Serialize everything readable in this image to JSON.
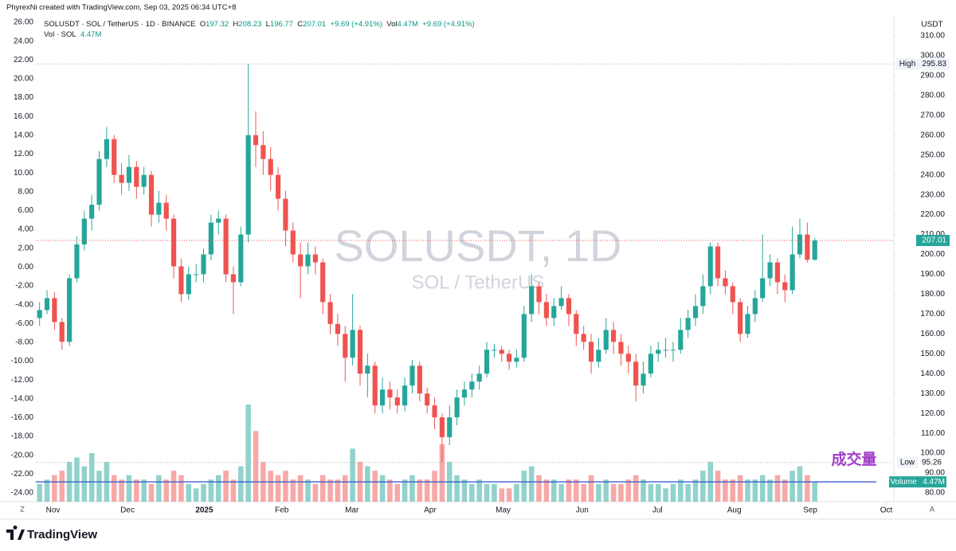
{
  "header": {
    "credit": "PhyrexNi created with TradingView.com, Sep 03, 2025 06:34 UTC+8",
    "symbol": "SOLUSDT · SOL / TetherUS · 1D · BINANCE",
    "ohlc": [
      {
        "label": "O",
        "value": 197.32
      },
      {
        "label": "H",
        "value": 208.23
      },
      {
        "label": "L",
        "value": 196.77
      },
      {
        "label": "C",
        "value": 207.01
      }
    ],
    "change": "+9.69 (+4.91%)",
    "vol_label": "Vol",
    "vol_value": "4.47M",
    "vol_change": "+9.69 (+4.91%)",
    "volume_legend_name": "Vol · SOL",
    "volume_legend_value": "4.47M"
  },
  "footer": {
    "logo": "TradingView",
    "left_button": "Z",
    "right_button": "A"
  },
  "chart_data": {
    "type": "candlestick",
    "currency": "USDT",
    "watermark": "SOLUSDT, 1D",
    "watermark_sub": "SOL / TetherUS",
    "annotation": "成交量",
    "up_color": "#26a69a",
    "down_color": "#ef5350",
    "grid": false,
    "categories": [
      null,
      null,
      null,
      null,
      null,
      null,
      null,
      null,
      null,
      null,
      null,
      null,
      null,
      null,
      null,
      null,
      null,
      null,
      null,
      null,
      null,
      null,
      null,
      null,
      null,
      null,
      null,
      null,
      null,
      null,
      null,
      null,
      null,
      null,
      null,
      null,
      null,
      null,
      null,
      null,
      null,
      null,
      null,
      null,
      null,
      null,
      null,
      null,
      null,
      null,
      null,
      null,
      null,
      null,
      null,
      null,
      null,
      null,
      null,
      null,
      null,
      null,
      null,
      null,
      null,
      null,
      null,
      null,
      null,
      null,
      null,
      null,
      null,
      null,
      null,
      null,
      null,
      null,
      null,
      null,
      null,
      null,
      null,
      null,
      null,
      null,
      null,
      null,
      null,
      null,
      null,
      null,
      null,
      null,
      null,
      null,
      null,
      null,
      null,
      null,
      null,
      null,
      null,
      null,
      null
    ],
    "open": [
      168,
      172,
      178,
      166,
      156,
      188,
      205,
      218,
      225,
      248,
      258,
      240,
      236,
      244,
      234,
      240,
      220,
      226,
      218,
      194,
      180,
      190,
      190,
      200,
      216,
      218,
      190,
      186,
      210,
      260,
      255,
      248,
      240,
      228,
      212,
      200,
      194,
      200,
      196,
      176,
      165,
      160,
      148,
      162,
      140,
      144,
      124,
      132,
      128,
      124,
      134,
      144,
      130,
      124,
      118,
      108,
      118,
      128,
      132,
      136,
      140,
      152,
      152,
      150,
      146,
      148,
      170,
      184,
      176,
      168,
      174,
      178,
      170,
      160,
      156,
      146,
      152,
      162,
      156,
      150,
      146,
      134,
      140,
      150,
      152,
      152,
      152,
      162,
      168,
      174,
      184,
      204,
      188,
      184,
      176,
      160,
      170,
      178,
      188,
      196,
      186,
      182,
      200,
      210,
      197.32
    ],
    "high": [
      176,
      182,
      181,
      168,
      190,
      209,
      222,
      230,
      252,
      264,
      260,
      246,
      250,
      247,
      244,
      242,
      232,
      230,
      220,
      198,
      194,
      195,
      203,
      220,
      222,
      220,
      194,
      214,
      295.83,
      272,
      262,
      254,
      244,
      232,
      216,
      206,
      206,
      204,
      198,
      180,
      170,
      164,
      180,
      164,
      150,
      146,
      138,
      136,
      132,
      138,
      147,
      146,
      133,
      128,
      120,
      124,
      132,
      136,
      140,
      144,
      156,
      155,
      154,
      152,
      152,
      174,
      190,
      186,
      180,
      178,
      184,
      180,
      172,
      164,
      160,
      158,
      168,
      166,
      160,
      154,
      150,
      146,
      154,
      156,
      158,
      156,
      168,
      172,
      180,
      190,
      206,
      206,
      192,
      186,
      178,
      174,
      182,
      210,
      200,
      198,
      190,
      214,
      218,
      216,
      208.23
    ],
    "low": [
      164,
      170,
      162,
      152,
      154,
      186,
      202,
      212,
      222,
      244,
      236,
      230,
      232,
      228,
      230,
      214,
      216,
      212,
      188,
      176,
      177,
      186,
      186,
      197,
      210,
      186,
      170,
      184,
      206,
      244,
      240,
      232,
      222,
      204,
      196,
      178,
      190,
      190,
      170,
      160,
      154,
      136,
      144,
      134,
      128,
      120,
      120,
      122,
      120,
      121,
      130,
      126,
      120,
      112,
      95.26,
      104,
      114,
      124,
      128,
      132,
      138,
      148,
      146,
      142,
      143,
      146,
      166,
      170,
      164,
      164,
      172,
      164,
      154,
      152,
      140,
      143,
      150,
      150,
      144,
      140,
      126,
      130,
      138,
      146,
      148,
      146,
      150,
      158,
      164,
      170,
      180,
      184,
      180,
      170,
      156,
      158,
      166,
      176,
      184,
      180,
      176,
      180,
      198,
      196,
      196.77
    ],
    "close": [
      172,
      178,
      166,
      156,
      188,
      205,
      218,
      225,
      248,
      258,
      240,
      236,
      244,
      234,
      240,
      220,
      226,
      218,
      194,
      180,
      190,
      190,
      200,
      216,
      218,
      190,
      186,
      210,
      260,
      255,
      248,
      240,
      228,
      212,
      200,
      194,
      200,
      196,
      176,
      165,
      160,
      148,
      162,
      140,
      144,
      124,
      132,
      128,
      124,
      134,
      144,
      130,
      124,
      118,
      108,
      118,
      128,
      132,
      136,
      140,
      152,
      152,
      150,
      146,
      148,
      170,
      184,
      176,
      168,
      174,
      178,
      170,
      160,
      156,
      146,
      152,
      162,
      156,
      150,
      146,
      134,
      140,
      150,
      152,
      152,
      152,
      162,
      168,
      174,
      184,
      204,
      188,
      184,
      176,
      160,
      170,
      178,
      188,
      196,
      186,
      182,
      200,
      210,
      197.32,
      207.01
    ],
    "volume": [
      4,
      5,
      6,
      7,
      9,
      10,
      8,
      11,
      7,
      9,
      6,
      5,
      6,
      5,
      5,
      4,
      6,
      5,
      7,
      6,
      4,
      3,
      4,
      5,
      6,
      7,
      5,
      8,
      22,
      16,
      9,
      7,
      6,
      7,
      5,
      6,
      5,
      4,
      6,
      5,
      5,
      6,
      12,
      9,
      8,
      7,
      6,
      5,
      4,
      5,
      6,
      5,
      5,
      7,
      13,
      9,
      6,
      5,
      4,
      5,
      4,
      4,
      3,
      3,
      4,
      7,
      8,
      6,
      5,
      5,
      4,
      5,
      5,
      4,
      6,
      4,
      5,
      4,
      4,
      5,
      6,
      5,
      4,
      4,
      3,
      4,
      5,
      4,
      5,
      7,
      9,
      7,
      5,
      5,
      6,
      5,
      5,
      6,
      5,
      6,
      5,
      7,
      8,
      6,
      4.47
    ],
    "xlim": [
      -0.5,
      114.4
    ],
    "xticks": [
      {
        "value": 1.8,
        "label": "Nov"
      },
      {
        "value": 11.8,
        "label": "Dec"
      },
      {
        "value": 22.1,
        "label": "2025"
      },
      {
        "value": 32.5,
        "label": "Feb"
      },
      {
        "value": 41.9,
        "label": "Mar"
      },
      {
        "value": 52.4,
        "label": "Apr"
      },
      {
        "value": 62.2,
        "label": "May"
      },
      {
        "value": 72.8,
        "label": "Jun"
      },
      {
        "value": 82.9,
        "label": "Jul"
      },
      {
        "value": 93.2,
        "label": "Aug"
      },
      {
        "value": 103.4,
        "label": "Sep"
      },
      {
        "value": 113.6,
        "label": "Oct"
      }
    ],
    "ylim": [
      75.6,
      320
    ],
    "yticks": [
      {
        "value": 80,
        "label": "80.00"
      },
      {
        "value": 90,
        "label": "90.00"
      },
      {
        "value": 100,
        "label": "100.00"
      },
      {
        "value": 110,
        "label": "110.00"
      },
      {
        "value": 120,
        "label": "120.00"
      },
      {
        "value": 130,
        "label": "130.00"
      },
      {
        "value": 140,
        "label": "140.00"
      },
      {
        "value": 150,
        "label": "150.00"
      },
      {
        "value": 160,
        "label": "160.00"
      },
      {
        "value": 170,
        "label": "170.00"
      },
      {
        "value": 180,
        "label": "180.00"
      },
      {
        "value": 190,
        "label": "190.00"
      },
      {
        "value": 200,
        "label": "200.00"
      },
      {
        "value": 210,
        "label": "210.00"
      },
      {
        "value": 220,
        "label": "220.00"
      },
      {
        "value": 230,
        "label": "230.00"
      },
      {
        "value": 240,
        "label": "240.00"
      },
      {
        "value": 250,
        "label": "250.00"
      },
      {
        "value": 260,
        "label": "260.00"
      },
      {
        "value": 270,
        "label": "270.00"
      },
      {
        "value": 280,
        "label": "280.00"
      },
      {
        "value": 290,
        "label": "290.00"
      },
      {
        "value": 300,
        "label": "300.00"
      },
      {
        "value": 310,
        "label": "310.00"
      }
    ],
    "y2lim": [
      -24.93,
      26.68
    ],
    "y2ticks": [
      {
        "value": -24,
        "label": "-24.00"
      },
      {
        "value": -22,
        "label": "-22.00"
      },
      {
        "value": -20,
        "label": "-20.00"
      },
      {
        "value": -18,
        "label": "-18.00"
      },
      {
        "value": -16,
        "label": "-16.00"
      },
      {
        "value": -14,
        "label": "-14.00"
      },
      {
        "value": -12,
        "label": "-12.00"
      },
      {
        "value": -10,
        "label": "-10.00"
      },
      {
        "value": -8,
        "label": "-8.00"
      },
      {
        "value": -6,
        "label": "-6.00"
      },
      {
        "value": -4,
        "label": "-4.00"
      },
      {
        "value": -2,
        "label": "-2.00"
      },
      {
        "value": 0,
        "label": "0.00"
      },
      {
        "value": 2,
        "label": "2.00"
      },
      {
        "value": 4,
        "label": "4.00"
      },
      {
        "value": 6,
        "label": "6.00"
      },
      {
        "value": 8,
        "label": "8.00"
      },
      {
        "value": 10,
        "label": "10.00"
      },
      {
        "value": 12,
        "label": "12.00"
      },
      {
        "value": 14,
        "label": "14.00"
      },
      {
        "value": 16,
        "label": "16.00"
      },
      {
        "value": 18,
        "label": "18.00"
      },
      {
        "value": 20,
        "label": "20.00"
      },
      {
        "value": 22,
        "label": "22.00"
      },
      {
        "value": 24,
        "label": "24.00"
      },
      {
        "value": 26,
        "label": "26.00"
      }
    ],
    "vlim": [
      0,
      110
    ],
    "high_marker": {
      "label": "High",
      "value": 295.83
    },
    "low_marker": {
      "label": "Low",
      "value": 95.26
    },
    "last_price": 207.01,
    "volume_marker": {
      "label": "Volume",
      "value": 4.47,
      "value_label": "4.47M"
    }
  }
}
